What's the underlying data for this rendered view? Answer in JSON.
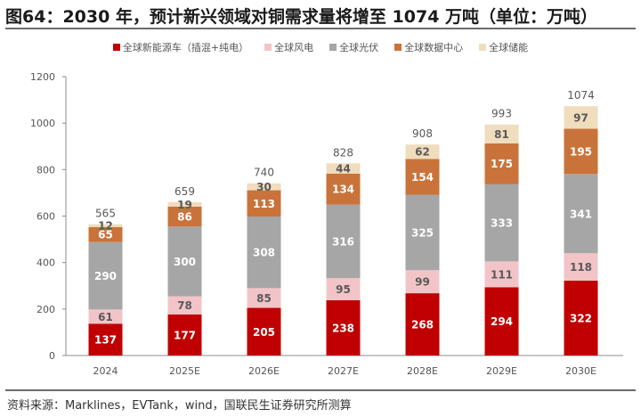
{
  "chart_data": {
    "type": "bar",
    "stacked": true,
    "title": "图64：2030 年，预计新兴领域对铜需求量将增至 1074 万吨（单位：万吨）",
    "categories": [
      "2024",
      "2025E",
      "2026E",
      "2027E",
      "2028E",
      "2029E",
      "2030E"
    ],
    "series": [
      {
        "name": "全球新能源车（插混+纯电）",
        "color": "#C00000",
        "label_color": "#ffffff",
        "values": [
          137,
          177,
          205,
          238,
          268,
          294,
          322
        ]
      },
      {
        "name": "全球风电",
        "color": "#F2C4C8",
        "label_color": "#595959",
        "values": [
          61,
          78,
          85,
          95,
          99,
          111,
          118
        ]
      },
      {
        "name": "全球光伏",
        "color": "#A6A6A6",
        "label_color": "#ffffff",
        "values": [
          290,
          300,
          308,
          316,
          325,
          333,
          341
        ]
      },
      {
        "name": "全球数据中心",
        "color": "#C9733A",
        "label_color": "#ffffff",
        "values": [
          65,
          86,
          113,
          134,
          154,
          175,
          195
        ]
      },
      {
        "name": "全球储能",
        "color": "#EFDDBE",
        "label_color": "#595959",
        "values": [
          12,
          19,
          30,
          44,
          62,
          81,
          97
        ]
      }
    ],
    "totals": [
      565,
      659,
      740,
      828,
      908,
      993,
      1074
    ],
    "xlabel": "",
    "ylabel": "",
    "ylim": [
      0,
      1200
    ],
    "yticks": [
      0,
      200,
      400,
      600,
      800,
      1000,
      1200
    ],
    "grid": false,
    "legend_position": "top-center"
  },
  "source": "资料来源：Marklines，EVTank，wind，国联民生证券研究所测算"
}
